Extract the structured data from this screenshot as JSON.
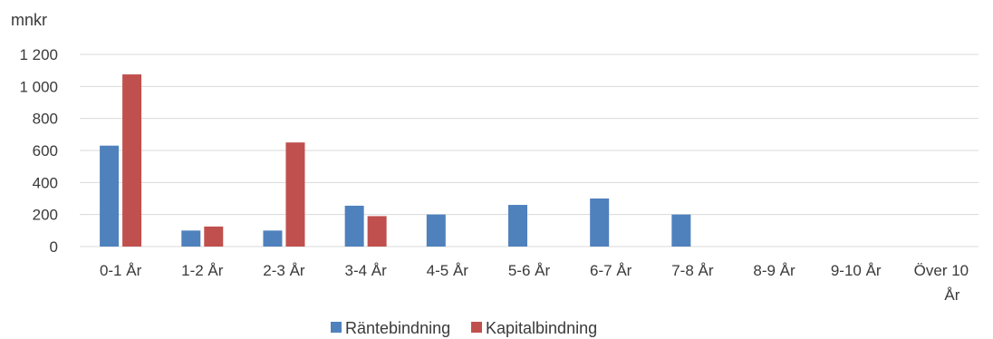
{
  "chart_data": {
    "type": "bar",
    "unit_label": "mnkr",
    "categories": [
      "0-1 År",
      "1-2 År",
      "2-3 År",
      "3-4 År",
      "4-5 År",
      "5-6 År",
      "6-7 År",
      "7-8 År",
      "8-9 År",
      "9-10 År",
      "Över 10 År"
    ],
    "series": [
      {
        "name": "Räntebindning",
        "color": "#4f81bd",
        "values": [
          630,
          100,
          100,
          255,
          200,
          260,
          300,
          200,
          0,
          0,
          0
        ]
      },
      {
        "name": "Kapitalbindning",
        "color": "#c0504d",
        "values": [
          1075,
          125,
          650,
          190,
          0,
          0,
          0,
          0,
          0,
          0,
          0
        ]
      }
    ],
    "ylim": [
      0,
      1200
    ],
    "yticks": [
      0,
      200,
      400,
      600,
      800,
      1000,
      1200
    ],
    "ytick_labels": [
      "0",
      "200",
      "400",
      "600",
      "800",
      "1 000",
      "1 200"
    ],
    "grid": true,
    "legend_position": "bottom"
  }
}
